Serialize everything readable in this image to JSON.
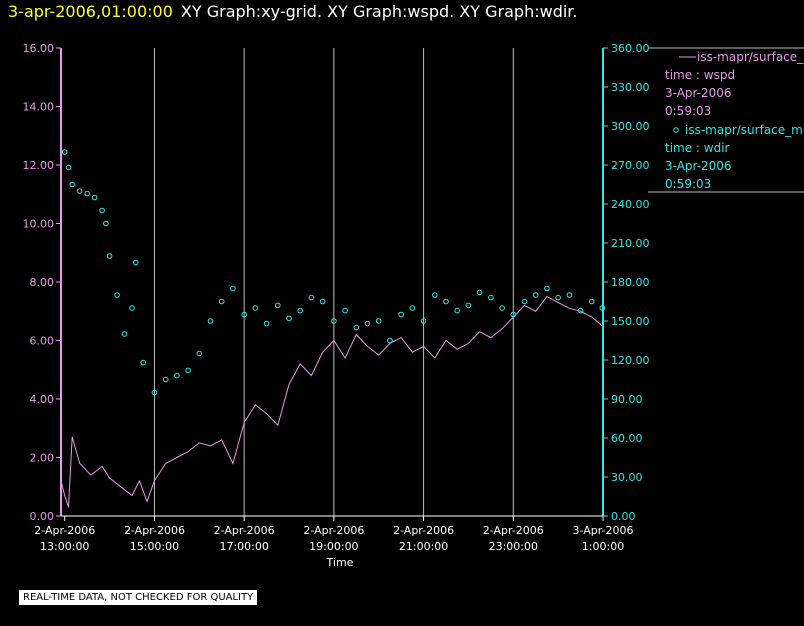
{
  "title": {
    "date": "3-apr-2006,01:00:00",
    "rest": "XY Graph:xy-grid.  XY Graph:wspd.  XY Graph:wdir."
  },
  "chart_data": {
    "type": "line",
    "xlabel": "Time",
    "x_range": [
      "2006-04-02T12:55:00",
      "2006-04-03T01:00:00"
    ],
    "x_ticks": [
      {
        "x": "2006-04-02T13:00:00",
        "line1": "2-Apr-2006",
        "line2": "13:00:00"
      },
      {
        "x": "2006-04-02T15:00:00",
        "line1": "2-Apr-2006",
        "line2": "15:00:00"
      },
      {
        "x": "2006-04-02T17:00:00",
        "line1": "2-Apr-2006",
        "line2": "17:00:00"
      },
      {
        "x": "2006-04-02T19:00:00",
        "line1": "2-Apr-2006",
        "line2": "19:00:00"
      },
      {
        "x": "2006-04-02T21:00:00",
        "line1": "2-Apr-2006",
        "line2": "21:00:00"
      },
      {
        "x": "2006-04-02T23:00:00",
        "line1": "2-Apr-2006",
        "line2": "23:00:00"
      },
      {
        "x": "2006-04-03T01:00:00",
        "line1": "3-Apr-2006",
        "line2": "1:00:00"
      }
    ],
    "y_left": {
      "lim": [
        0,
        16
      ],
      "ticks": [
        "0.00",
        "2.00",
        "4.00",
        "6.00",
        "8.00",
        "10.00",
        "12.00",
        "14.00",
        "16.00"
      ],
      "color": "#e79ae7"
    },
    "y_right": {
      "lim": [
        0,
        360
      ],
      "ticks": [
        "0.00",
        "30.00",
        "60.00",
        "90.00",
        "120.00",
        "150.00",
        "180.00",
        "210.00",
        "240.00",
        "270.00",
        "300.00",
        "330.00",
        "360.00"
      ],
      "color": "#33e6e6"
    },
    "grid": "vertical",
    "legend_position": "right",
    "series": [
      {
        "name": "iss-mapr/surface_m",
        "axis": "left",
        "kind": "line",
        "color": "#e79ae7",
        "legend": {
          "line1": "time : wspd",
          "line2": "3-Apr-2006",
          "line3": "0:59:03"
        },
        "points": [
          [
            "2006-04-02T12:55:00",
            1.2
          ],
          [
            "2006-04-02T13:00:00",
            0.7
          ],
          [
            "2006-04-02T13:05:00",
            0.3
          ],
          [
            "2006-04-02T13:10:00",
            2.7
          ],
          [
            "2006-04-02T13:20:00",
            1.8
          ],
          [
            "2006-04-02T13:35:00",
            1.4
          ],
          [
            "2006-04-02T13:50:00",
            1.7
          ],
          [
            "2006-04-02T14:00:00",
            1.3
          ],
          [
            "2006-04-02T14:15:00",
            1.0
          ],
          [
            "2006-04-02T14:30:00",
            0.7
          ],
          [
            "2006-04-02T14:40:00",
            1.2
          ],
          [
            "2006-04-02T14:50:00",
            0.5
          ],
          [
            "2006-04-02T15:00:00",
            1.2
          ],
          [
            "2006-04-02T15:15:00",
            1.8
          ],
          [
            "2006-04-02T15:30:00",
            2.0
          ],
          [
            "2006-04-02T15:45:00",
            2.2
          ],
          [
            "2006-04-02T16:00:00",
            2.5
          ],
          [
            "2006-04-02T16:15:00",
            2.4
          ],
          [
            "2006-04-02T16:30:00",
            2.6
          ],
          [
            "2006-04-02T16:45:00",
            1.8
          ],
          [
            "2006-04-02T17:00:00",
            3.2
          ],
          [
            "2006-04-02T17:15:00",
            3.8
          ],
          [
            "2006-04-02T17:30:00",
            3.5
          ],
          [
            "2006-04-02T17:45:00",
            3.1
          ],
          [
            "2006-04-02T18:00:00",
            4.5
          ],
          [
            "2006-04-02T18:15:00",
            5.2
          ],
          [
            "2006-04-02T18:30:00",
            4.8
          ],
          [
            "2006-04-02T18:45:00",
            5.6
          ],
          [
            "2006-04-02T19:00:00",
            6.0
          ],
          [
            "2006-04-02T19:15:00",
            5.4
          ],
          [
            "2006-04-02T19:30:00",
            6.2
          ],
          [
            "2006-04-02T19:45:00",
            5.8
          ],
          [
            "2006-04-02T20:00:00",
            5.5
          ],
          [
            "2006-04-02T20:15:00",
            5.9
          ],
          [
            "2006-04-02T20:30:00",
            6.1
          ],
          [
            "2006-04-02T20:45:00",
            5.6
          ],
          [
            "2006-04-02T21:00:00",
            5.8
          ],
          [
            "2006-04-02T21:15:00",
            5.4
          ],
          [
            "2006-04-02T21:30:00",
            6.0
          ],
          [
            "2006-04-02T21:45:00",
            5.7
          ],
          [
            "2006-04-02T22:00:00",
            5.9
          ],
          [
            "2006-04-02T22:15:00",
            6.3
          ],
          [
            "2006-04-02T22:30:00",
            6.1
          ],
          [
            "2006-04-02T22:45:00",
            6.4
          ],
          [
            "2006-04-02T23:00:00",
            6.8
          ],
          [
            "2006-04-02T23:15:00",
            7.2
          ],
          [
            "2006-04-02T23:30:00",
            7.0
          ],
          [
            "2006-04-02T23:45:00",
            7.5
          ],
          [
            "2006-04-03T00:00:00",
            7.3
          ],
          [
            "2006-04-03T00:15:00",
            7.1
          ],
          [
            "2006-04-03T00:30:00",
            7.0
          ],
          [
            "2006-04-03T00:45:00",
            6.8
          ],
          [
            "2006-04-03T00:59:00",
            6.5
          ]
        ]
      },
      {
        "name": "iss-mapr/surface_m",
        "axis": "right",
        "kind": "scatter",
        "color": "#33e6e6",
        "legend": {
          "line1": "time : wdir",
          "line2": "3-Apr-2006",
          "line3": "0:59:03"
        },
        "points": [
          [
            "2006-04-02T13:00:00",
            280
          ],
          [
            "2006-04-02T13:05:00",
            268
          ],
          [
            "2006-04-02T13:10:00",
            255
          ],
          [
            "2006-04-02T13:20:00",
            250
          ],
          [
            "2006-04-02T13:30:00",
            248
          ],
          [
            "2006-04-02T13:40:00",
            245
          ],
          [
            "2006-04-02T13:50:00",
            235
          ],
          [
            "2006-04-02T13:55:00",
            225
          ],
          [
            "2006-04-02T14:00:00",
            200
          ],
          [
            "2006-04-02T14:10:00",
            170
          ],
          [
            "2006-04-02T14:20:00",
            140
          ],
          [
            "2006-04-02T14:30:00",
            160
          ],
          [
            "2006-04-02T14:35:00",
            195
          ],
          [
            "2006-04-02T14:45:00",
            118
          ],
          [
            "2006-04-02T15:00:00",
            95
          ],
          [
            "2006-04-02T15:15:00",
            105
          ],
          [
            "2006-04-02T15:30:00",
            108
          ],
          [
            "2006-04-02T15:45:00",
            112
          ],
          [
            "2006-04-02T16:00:00",
            125
          ],
          [
            "2006-04-02T16:15:00",
            150
          ],
          [
            "2006-04-02T16:30:00",
            165
          ],
          [
            "2006-04-02T16:45:00",
            175
          ],
          [
            "2006-04-02T17:00:00",
            155
          ],
          [
            "2006-04-02T17:15:00",
            160
          ],
          [
            "2006-04-02T17:30:00",
            148
          ],
          [
            "2006-04-02T17:45:00",
            162
          ],
          [
            "2006-04-02T18:00:00",
            152
          ],
          [
            "2006-04-02T18:15:00",
            158
          ],
          [
            "2006-04-02T18:30:00",
            168
          ],
          [
            "2006-04-02T18:45:00",
            165
          ],
          [
            "2006-04-02T19:00:00",
            150
          ],
          [
            "2006-04-02T19:15:00",
            158
          ],
          [
            "2006-04-02T19:30:00",
            145
          ],
          [
            "2006-04-02T19:45:00",
            148
          ],
          [
            "2006-04-02T20:00:00",
            150
          ],
          [
            "2006-04-02T20:15:00",
            135
          ],
          [
            "2006-04-02T20:30:00",
            155
          ],
          [
            "2006-04-02T20:45:00",
            160
          ],
          [
            "2006-04-02T21:00:00",
            150
          ],
          [
            "2006-04-02T21:15:00",
            170
          ],
          [
            "2006-04-02T21:30:00",
            165
          ],
          [
            "2006-04-02T21:45:00",
            158
          ],
          [
            "2006-04-02T22:00:00",
            162
          ],
          [
            "2006-04-02T22:15:00",
            172
          ],
          [
            "2006-04-02T22:30:00",
            168
          ],
          [
            "2006-04-02T22:45:00",
            160
          ],
          [
            "2006-04-02T23:00:00",
            155
          ],
          [
            "2006-04-02T23:15:00",
            165
          ],
          [
            "2006-04-02T23:30:00",
            170
          ],
          [
            "2006-04-02T23:45:00",
            175
          ],
          [
            "2006-04-03T00:00:00",
            168
          ],
          [
            "2006-04-03T00:15:00",
            170
          ],
          [
            "2006-04-03T00:30:00",
            158
          ],
          [
            "2006-04-03T00:45:00",
            165
          ],
          [
            "2006-04-03T00:59:00",
            160
          ]
        ]
      }
    ]
  },
  "footer": {
    "note": "REAL-TIME DATA, NOT CHECKED FOR QUALITY"
  }
}
